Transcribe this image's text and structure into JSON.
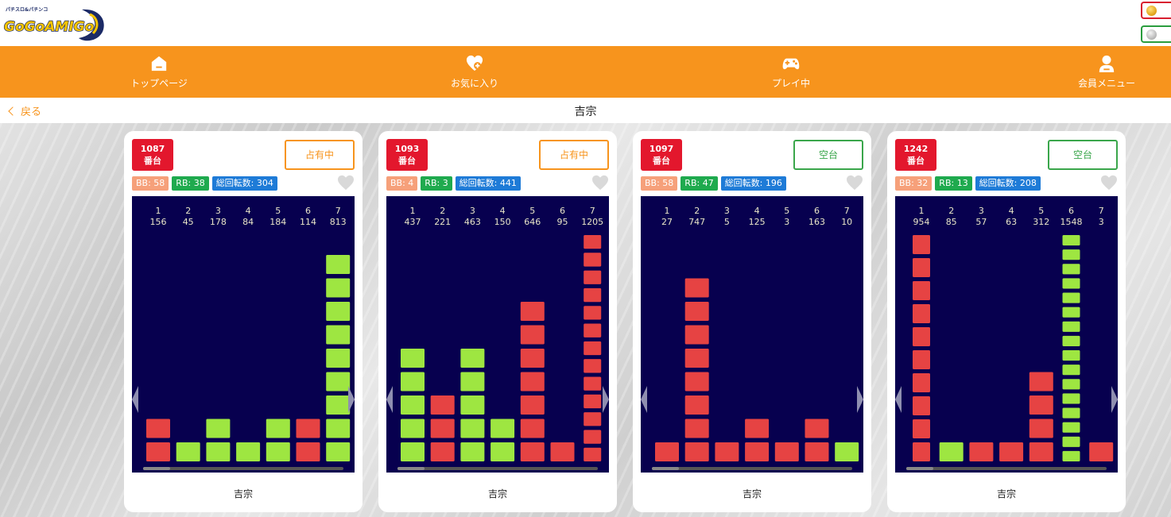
{
  "header": {
    "logo_text": "GoGoAMIGo",
    "logo_subtext": "パチスロ&パチンコ",
    "coin_icons": [
      "gold-coin-icon",
      "silver-coin-icon"
    ]
  },
  "nav": {
    "items": [
      {
        "label": "トップページ",
        "icon": "home-icon"
      },
      {
        "label": "お気に入り",
        "icon": "favorite-heart-icon"
      },
      {
        "label": "プレイ中",
        "icon": "gamepad-icon"
      },
      {
        "label": "会員メニュー",
        "icon": "user-icon"
      }
    ]
  },
  "subheader": {
    "back_label": "戻る",
    "title": "吉宗"
  },
  "colors": {
    "orange": "#f7941d",
    "badge_red": "#e3172d",
    "bar_red": "#e64343",
    "bar_green": "#9ee641",
    "chart_bg": "#07004f"
  },
  "cards": [
    {
      "unit_no": "1087",
      "unit_suffix": "番台",
      "status": "占有中",
      "status_type": "occupied",
      "bb_label": "BB: 58",
      "rb_label": "RB: 38",
      "total_label": "総回転数: 304",
      "name": "吉宗",
      "history": [
        {
          "n": "1",
          "v": "156",
          "type": "red",
          "blocks": 2
        },
        {
          "n": "2",
          "v": "45",
          "type": "green",
          "blocks": 1
        },
        {
          "n": "3",
          "v": "178",
          "type": "green",
          "blocks": 2
        },
        {
          "n": "4",
          "v": "84",
          "type": "green",
          "blocks": 1
        },
        {
          "n": "5",
          "v": "184",
          "type": "green",
          "blocks": 2
        },
        {
          "n": "6",
          "v": "114",
          "type": "red",
          "blocks": 2
        },
        {
          "n": "7",
          "v": "813",
          "type": "green",
          "blocks": 9
        }
      ]
    },
    {
      "unit_no": "1093",
      "unit_suffix": "番台",
      "status": "占有中",
      "status_type": "occupied",
      "bb_label": "BB: 4",
      "rb_label": "RB: 3",
      "total_label": "総回転数: 441",
      "name": "吉宗",
      "history": [
        {
          "n": "1",
          "v": "437",
          "type": "green",
          "blocks": 5
        },
        {
          "n": "2",
          "v": "221",
          "type": "red",
          "blocks": 3
        },
        {
          "n": "3",
          "v": "463",
          "type": "green",
          "blocks": 5
        },
        {
          "n": "4",
          "v": "150",
          "type": "green",
          "blocks": 2
        },
        {
          "n": "5",
          "v": "646",
          "type": "red",
          "blocks": 7
        },
        {
          "n": "6",
          "v": "95",
          "type": "red",
          "blocks": 1
        },
        {
          "n": "7",
          "v": "1205",
          "type": "red",
          "blocks": 13
        }
      ]
    },
    {
      "unit_no": "1097",
      "unit_suffix": "番台",
      "status": "空台",
      "status_type": "vacant",
      "bb_label": "BB: 58",
      "rb_label": "RB: 47",
      "total_label": "総回転数: 196",
      "name": "吉宗",
      "history": [
        {
          "n": "1",
          "v": "27",
          "type": "red",
          "blocks": 1
        },
        {
          "n": "2",
          "v": "747",
          "type": "red",
          "blocks": 8
        },
        {
          "n": "3",
          "v": "5",
          "type": "red",
          "blocks": 1
        },
        {
          "n": "4",
          "v": "125",
          "type": "red",
          "blocks": 2
        },
        {
          "n": "5",
          "v": "3",
          "type": "red",
          "blocks": 1
        },
        {
          "n": "6",
          "v": "163",
          "type": "red",
          "blocks": 2
        },
        {
          "n": "7",
          "v": "10",
          "type": "green",
          "blocks": 1
        }
      ]
    },
    {
      "unit_no": "1242",
      "unit_suffix": "番台",
      "status": "空台",
      "status_type": "vacant",
      "bb_label": "BB: 32",
      "rb_label": "RB: 13",
      "total_label": "総回転数: 208",
      "name": "吉宗",
      "history": [
        {
          "n": "1",
          "v": "954",
          "type": "red",
          "blocks": 10
        },
        {
          "n": "2",
          "v": "85",
          "type": "green",
          "blocks": 1
        },
        {
          "n": "3",
          "v": "57",
          "type": "red",
          "blocks": 1
        },
        {
          "n": "4",
          "v": "63",
          "type": "red",
          "blocks": 1
        },
        {
          "n": "5",
          "v": "312",
          "type": "red",
          "blocks": 4
        },
        {
          "n": "6",
          "v": "1548",
          "type": "green",
          "blocks": 16
        },
        {
          "n": "7",
          "v": "3",
          "type": "red",
          "blocks": 1
        }
      ]
    }
  ]
}
